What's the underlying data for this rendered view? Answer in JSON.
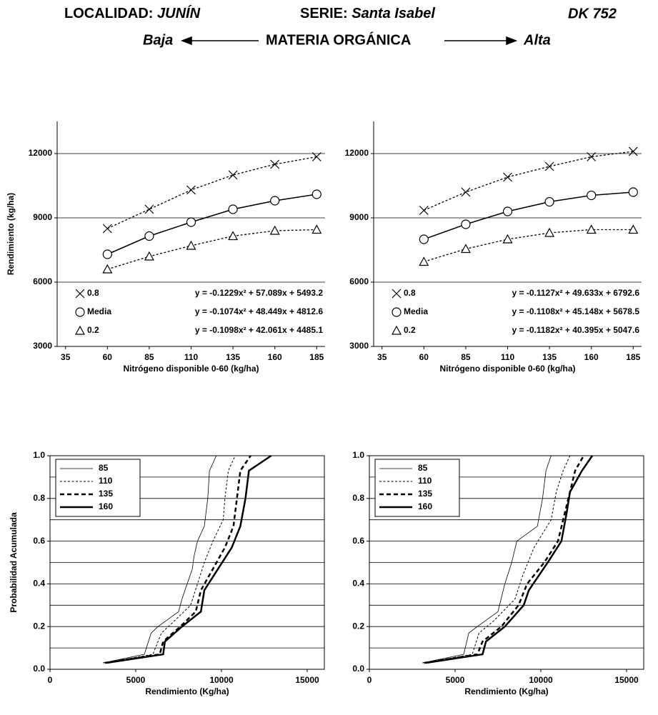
{
  "header": {
    "locality_label": "LOCALIDAD:",
    "locality": "JUNÍN",
    "series_label": "SERIE:",
    "series": "Santa Isabel",
    "hybrid": "DK 752",
    "low": "Baja",
    "axis_title": "MATERIA ORGÁNICA",
    "high": "Alta"
  },
  "chart_data": [
    {
      "type": "line",
      "ylabel": "Rendimiento (kg/ha)",
      "xlabel": "Nitrógeno disponible 0-60 (kg/ha)",
      "x": [
        60,
        85,
        110,
        135,
        160,
        185
      ],
      "xlim": [
        30,
        190
      ],
      "xticks": [
        35,
        60,
        85,
        110,
        135,
        160,
        185
      ],
      "ylim": [
        3000,
        13500
      ],
      "yticks": [
        3000,
        6000,
        9000,
        12000
      ],
      "grid": true,
      "legend": "lower left",
      "series": [
        {
          "name": "0.8",
          "color": "#000000",
          "marker": "cross",
          "line": "dotted",
          "width": 1.3,
          "values": [
            8500,
            9400,
            10300,
            11000,
            11500,
            11850
          ],
          "equation": "y = -0.1229x² + 57.089x + 5493.2"
        },
        {
          "name": "Media",
          "color": "#000000",
          "marker": "circle",
          "line": "solid",
          "width": 1.6,
          "values": [
            7300,
            8150,
            8800,
            9400,
            9800,
            10100
          ],
          "equation": "y = -0.1074x² + 48.449x + 4812.6"
        },
        {
          "name": "0.2",
          "color": "#000000",
          "marker": "triangle",
          "line": "dotted",
          "width": 1.3,
          "values": [
            6600,
            7200,
            7700,
            8150,
            8400,
            8450
          ],
          "equation": "y = -0.1098x² + 42.061x + 4485.1"
        }
      ]
    },
    {
      "type": "line",
      "xlabel": "Nitrógeno disponible 0-60 (kg/ha)",
      "x": [
        60,
        85,
        110,
        135,
        160,
        185
      ],
      "xlim": [
        30,
        190
      ],
      "xticks": [
        35,
        60,
        85,
        110,
        135,
        160,
        185
      ],
      "ylim": [
        3000,
        13500
      ],
      "yticks": [
        3000,
        6000,
        9000,
        12000
      ],
      "grid": true,
      "legend": "lower left",
      "series": [
        {
          "name": "0.8",
          "color": "#000000",
          "marker": "cross",
          "line": "dotted",
          "width": 1.3,
          "values": [
            9350,
            10200,
            10900,
            11400,
            11850,
            12100
          ],
          "equation": "y = -0.1127x² + 49.633x + 6792.6"
        },
        {
          "name": "Media",
          "color": "#000000",
          "marker": "circle",
          "line": "solid",
          "width": 1.6,
          "values": [
            8000,
            8700,
            9300,
            9750,
            10050,
            10200
          ],
          "equation": "y = -0.1108x² + 45.148x + 5678.5"
        },
        {
          "name": "0.2",
          "color": "#000000",
          "marker": "triangle",
          "line": "dotted",
          "width": 1.3,
          "values": [
            6950,
            7550,
            8000,
            8300,
            8450,
            8450
          ],
          "equation": "y = -0.1182x² + 40.395x + 5047.6"
        }
      ]
    },
    {
      "type": "line",
      "ylabel": "Probabilidad Acumulada",
      "xlabel": "Rendimiento (Kg/ha)",
      "xlim": [
        0,
        16000
      ],
      "xticks": [
        0,
        5000,
        10000,
        15000
      ],
      "ylim": [
        0,
        1
      ],
      "yticks": [
        {
          "value": 0,
          "label": "0.0"
        },
        0.2,
        0.4,
        0.6,
        0.8,
        {
          "value": 1,
          "label": "1.0"
        }
      ],
      "yminor": [
        0.1,
        0.3,
        0.5,
        0.7,
        0.9
      ],
      "grid": true,
      "frame": true,
      "legend": "upper left",
      "series": [
        {
          "name": "85",
          "color": "#000000",
          "line": "solid",
          "width": 0.8,
          "x": [
            3100,
            5500,
            5900,
            6300,
            7500,
            7700,
            8000,
            8300,
            8400,
            8600,
            9000,
            9200,
            9300,
            9700
          ],
          "values": [
            0.03,
            0.07,
            0.17,
            0.2,
            0.27,
            0.33,
            0.4,
            0.47,
            0.53,
            0.6,
            0.67,
            0.8,
            0.93,
            1.0
          ]
        },
        {
          "name": "110",
          "color": "#000000",
          "line": "dotted",
          "width": 1,
          "x": [
            3100,
            6000,
            6500,
            7300,
            8200,
            8600,
            9000,
            9500,
            10100,
            10200,
            10400,
            10800
          ],
          "values": [
            0.03,
            0.07,
            0.17,
            0.23,
            0.3,
            0.4,
            0.5,
            0.6,
            0.7,
            0.8,
            0.93,
            1.0
          ]
        },
        {
          "name": "135",
          "color": "#000000",
          "line": "dashed",
          "width": 2.5,
          "x": [
            3200,
            6400,
            6600,
            7600,
            8500,
            8800,
            9500,
            10200,
            10700,
            10900,
            11100,
            11700
          ],
          "values": [
            0.03,
            0.07,
            0.13,
            0.2,
            0.27,
            0.37,
            0.47,
            0.57,
            0.67,
            0.8,
            0.93,
            1.0
          ]
        },
        {
          "name": "160",
          "color": "#000000",
          "line": "solid",
          "width": 2.5,
          "x": [
            3300,
            6600,
            6700,
            7700,
            8800,
            9000,
            9800,
            10600,
            11100,
            11400,
            11600,
            12900
          ],
          "values": [
            0.03,
            0.07,
            0.13,
            0.2,
            0.27,
            0.37,
            0.47,
            0.57,
            0.67,
            0.8,
            0.93,
            1.0
          ]
        }
      ]
    },
    {
      "type": "line",
      "xlabel": "Rendimiento (Kg/ha)",
      "xlim": [
        0,
        16000
      ],
      "xticks": [
        0,
        5000,
        10000,
        15000
      ],
      "ylim": [
        0,
        1
      ],
      "yticks": [
        {
          "value": 0,
          "label": "0.0"
        },
        0.2,
        0.4,
        0.6,
        0.8,
        {
          "value": 1,
          "label": "1.0"
        }
      ],
      "yminor": [
        0.1,
        0.3,
        0.5,
        0.7,
        0.9
      ],
      "grid": true,
      "frame": true,
      "legend": "upper left",
      "series": [
        {
          "name": "85",
          "color": "#000000",
          "line": "solid",
          "width": 0.8,
          "x": [
            3100,
            5500,
            5800,
            6300,
            7500,
            7900,
            8300,
            8600,
            9800,
            10100,
            10300,
            10600
          ],
          "values": [
            0.03,
            0.07,
            0.17,
            0.2,
            0.27,
            0.4,
            0.5,
            0.6,
            0.67,
            0.8,
            0.93,
            1.0
          ]
        },
        {
          "name": "110",
          "color": "#000000",
          "line": "dotted",
          "width": 1,
          "x": [
            3100,
            6000,
            6400,
            7300,
            8500,
            8900,
            9600,
            10600,
            10900,
            11300,
            11700
          ],
          "values": [
            0.03,
            0.07,
            0.17,
            0.23,
            0.33,
            0.43,
            0.57,
            0.7,
            0.83,
            0.93,
            1.0
          ]
        },
        {
          "name": "135",
          "color": "#000000",
          "line": "dashed",
          "width": 2.5,
          "x": [
            3200,
            6300,
            6600,
            7700,
            8700,
            9200,
            10200,
            11000,
            11300,
            11700,
            12000,
            12500
          ],
          "values": [
            0.03,
            0.07,
            0.13,
            0.2,
            0.3,
            0.4,
            0.5,
            0.6,
            0.7,
            0.83,
            0.93,
            1.0
          ]
        },
        {
          "name": "160",
          "color": "#000000",
          "line": "solid",
          "width": 2.5,
          "x": [
            3300,
            6600,
            6800,
            7900,
            9000,
            9300,
            10400,
            11200,
            11500,
            11700,
            12400,
            13000
          ],
          "values": [
            0.03,
            0.07,
            0.13,
            0.2,
            0.3,
            0.37,
            0.5,
            0.6,
            0.73,
            0.83,
            0.93,
            1.0
          ]
        }
      ]
    }
  ]
}
